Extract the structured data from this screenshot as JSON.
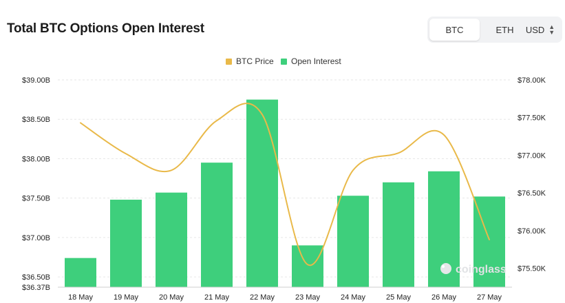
{
  "header": {
    "title": "Total BTC Options Open Interest",
    "coin_options": [
      "BTC",
      "ETH"
    ],
    "selected_coin": "BTC",
    "currency": "USD"
  },
  "watermark": "coinglass",
  "colors": {
    "bar": "#3ecf7c",
    "line": "#e9b949",
    "grid": "#e6e6e6"
  },
  "chart_data": {
    "type": "bar",
    "title": "Total BTC Options Open Interest",
    "categories": [
      "18 May",
      "19 May",
      "20 May",
      "21 May",
      "22 May",
      "23 May",
      "24 May",
      "25 May",
      "26 May",
      "27 May"
    ],
    "series": [
      {
        "name": "Open Interest",
        "type": "bar",
        "axis": "left",
        "values": [
          36.74,
          37.48,
          37.57,
          37.95,
          38.75,
          36.9,
          37.53,
          37.7,
          37.84,
          37.52
        ]
      },
      {
        "name": "BTC Price",
        "type": "line",
        "axis": "right",
        "smooth": true,
        "values": [
          77430,
          77020,
          76800,
          77460,
          77540,
          75550,
          76800,
          77030,
          77270,
          75880
        ]
      }
    ],
    "y_left": {
      "ticks": [
        "$39.00B",
        "$38.50B",
        "$38.00B",
        "$37.50B",
        "$37.00B",
        "$36.50B",
        "$36.37B"
      ],
      "range": [
        36.37,
        39.0
      ]
    },
    "y_right": {
      "ticks": [
        "$78.00K",
        "$77.50K",
        "$77.00K",
        "$76.50K",
        "$76.00K",
        "$75.50K"
      ],
      "range": [
        75250,
        78000
      ]
    },
    "legend": {
      "placement": "top-center",
      "entries": [
        "BTC Price",
        "Open Interest"
      ]
    },
    "grid": true
  }
}
